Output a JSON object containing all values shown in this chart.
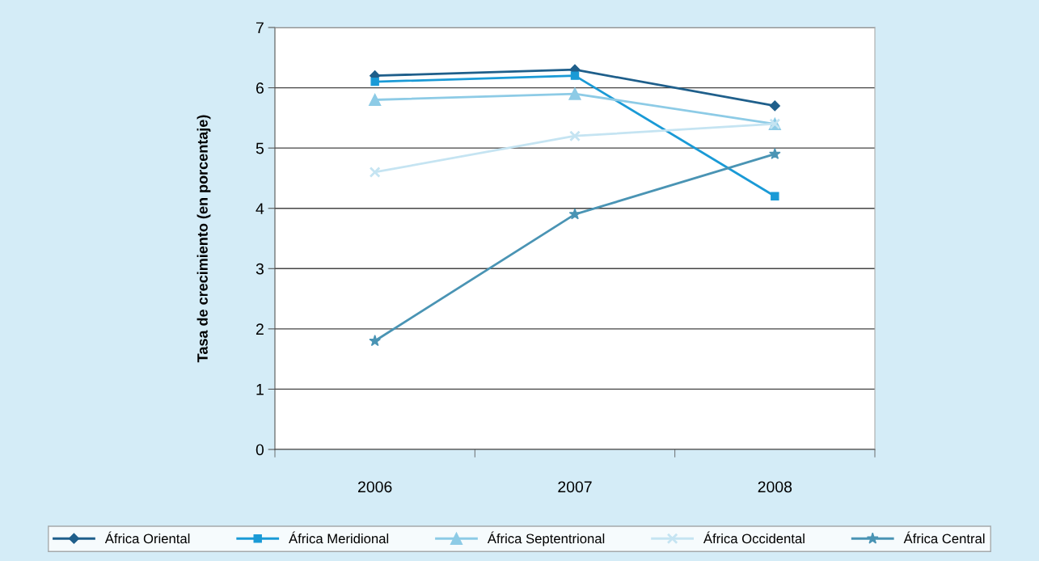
{
  "chart_data": {
    "type": "line",
    "ylabel": "Tasa de crecimiento (en porcentaje)",
    "categories": [
      "2006",
      "2007",
      "2008"
    ],
    "series": [
      {
        "name": "África Oriental",
        "color": "#1f5f8b",
        "marker": "diamond",
        "values": [
          6.2,
          6.3,
          5.7
        ]
      },
      {
        "name": "África Meridional",
        "color": "#1a9ad6",
        "marker": "square",
        "values": [
          6.1,
          6.2,
          4.2
        ]
      },
      {
        "name": "África Septentrional",
        "color": "#8dcbe6",
        "marker": "triangle",
        "values": [
          5.8,
          5.9,
          5.4
        ]
      },
      {
        "name": "África Occidental",
        "color": "#c5e4f2",
        "marker": "cross",
        "values": [
          4.6,
          5.2,
          5.4
        ]
      },
      {
        "name": "África Central",
        "color": "#4a94b4",
        "marker": "star",
        "values": [
          1.8,
          3.9,
          4.9
        ]
      }
    ],
    "ylim": [
      0,
      7
    ],
    "yticks": [
      0,
      1,
      2,
      3,
      4,
      5,
      6,
      7
    ],
    "grid": "y",
    "legend": "bottom"
  }
}
